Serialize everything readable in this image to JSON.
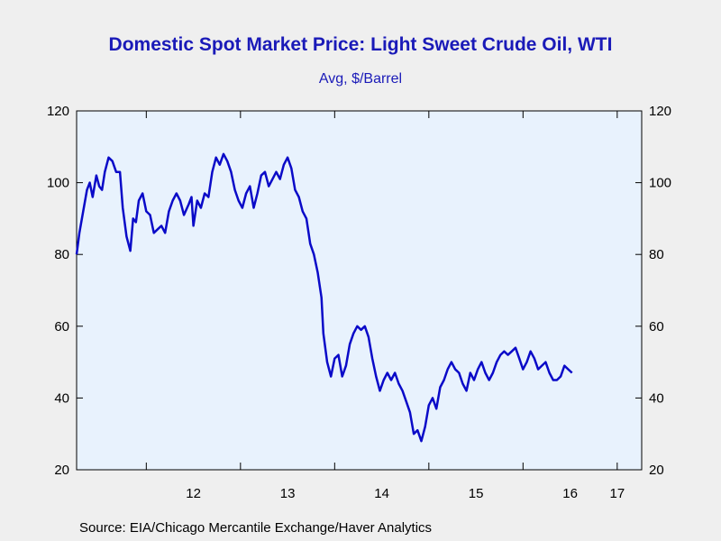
{
  "chart_data": {
    "type": "line",
    "title": "Domestic Spot Market Price: Light Sweet Crude Oil, WTI",
    "subtitle": "Avg, $/Barrel",
    "source": "Source:  EIA/Chicago Mercantile Exchange/Haver Analytics",
    "ylim": [
      20,
      120
    ],
    "yticks": [
      "20",
      "40",
      "60",
      "80",
      "100",
      "120"
    ],
    "xlim": [
      2011.26,
      2017.26
    ],
    "x_tick_labels": [
      {
        "label": "12",
        "x": 2012.5
      },
      {
        "label": "13",
        "x": 2013.5
      },
      {
        "label": "14",
        "x": 2014.5
      },
      {
        "label": "15",
        "x": 2015.5
      },
      {
        "label": "16",
        "x": 2016.5
      },
      {
        "label": "17",
        "x": 2017.0
      }
    ],
    "x_ticks": [
      2012,
      2013,
      2014,
      2015,
      2016,
      2017
    ],
    "grid": false,
    "line_color": "#0a0ac8",
    "plot_bg": "#e8f2fd",
    "series": [
      {
        "points": [
          [
            2011.26,
            80
          ],
          [
            2011.29,
            86
          ],
          [
            2011.33,
            92
          ],
          [
            2011.37,
            98
          ],
          [
            2011.4,
            100
          ],
          [
            2011.43,
            96
          ],
          [
            2011.47,
            102
          ],
          [
            2011.5,
            99
          ],
          [
            2011.53,
            98
          ],
          [
            2011.56,
            103
          ],
          [
            2011.6,
            107
          ],
          [
            2011.64,
            106
          ],
          [
            2011.68,
            103
          ],
          [
            2011.72,
            103
          ],
          [
            2011.75,
            93
          ],
          [
            2011.79,
            85
          ],
          [
            2011.83,
            81
          ],
          [
            2011.86,
            90
          ],
          [
            2011.89,
            89
          ],
          [
            2011.92,
            95
          ],
          [
            2011.96,
            97
          ],
          [
            2012.0,
            92
          ],
          [
            2012.04,
            91
          ],
          [
            2012.08,
            86
          ],
          [
            2012.12,
            87
          ],
          [
            2012.16,
            88
          ],
          [
            2012.2,
            86
          ],
          [
            2012.24,
            92
          ],
          [
            2012.28,
            95
          ],
          [
            2012.32,
            97
          ],
          [
            2012.36,
            95
          ],
          [
            2012.4,
            91
          ],
          [
            2012.45,
            94
          ],
          [
            2012.48,
            96
          ],
          [
            2012.5,
            88
          ],
          [
            2012.54,
            95
          ],
          [
            2012.58,
            93
          ],
          [
            2012.62,
            97
          ],
          [
            2012.66,
            96
          ],
          [
            2012.7,
            103
          ],
          [
            2012.74,
            107
          ],
          [
            2012.78,
            105
          ],
          [
            2012.82,
            108
          ],
          [
            2012.86,
            106
          ],
          [
            2012.9,
            103
          ],
          [
            2012.94,
            98
          ],
          [
            2012.98,
            95
          ],
          [
            2013.02,
            93
          ],
          [
            2013.06,
            97
          ],
          [
            2013.1,
            99
          ],
          [
            2013.14,
            93
          ],
          [
            2013.18,
            97
          ],
          [
            2013.22,
            102
          ],
          [
            2013.26,
            103
          ],
          [
            2013.3,
            99
          ],
          [
            2013.34,
            101
          ],
          [
            2013.38,
            103
          ],
          [
            2013.42,
            101
          ],
          [
            2013.46,
            105
          ],
          [
            2013.5,
            107
          ],
          [
            2013.54,
            104
          ],
          [
            2013.58,
            98
          ],
          [
            2013.62,
            96
          ],
          [
            2013.66,
            92
          ],
          [
            2013.7,
            90
          ],
          [
            2013.74,
            83
          ],
          [
            2013.78,
            80
          ],
          [
            2013.82,
            75
          ],
          [
            2013.86,
            68
          ],
          [
            2013.88,
            58
          ],
          [
            2013.92,
            50
          ],
          [
            2013.96,
            46
          ],
          [
            2014.0,
            51
          ],
          [
            2014.04,
            52
          ],
          [
            2014.08,
            46
          ],
          [
            2014.12,
            49
          ],
          [
            2014.16,
            55
          ],
          [
            2014.2,
            58
          ],
          [
            2014.24,
            60
          ],
          [
            2014.28,
            59
          ],
          [
            2014.32,
            60
          ],
          [
            2014.36,
            57
          ],
          [
            2014.4,
            51
          ],
          [
            2014.44,
            46
          ],
          [
            2014.48,
            42
          ],
          [
            2014.52,
            45
          ],
          [
            2014.56,
            47
          ],
          [
            2014.6,
            45
          ],
          [
            2014.64,
            47
          ],
          [
            2014.68,
            44
          ],
          [
            2014.72,
            42
          ],
          [
            2014.76,
            39
          ],
          [
            2014.8,
            36
          ],
          [
            2014.84,
            30
          ],
          [
            2014.88,
            31
          ],
          [
            2014.92,
            28
          ],
          [
            2014.96,
            32
          ],
          [
            2015.0,
            38
          ],
          [
            2015.04,
            40
          ],
          [
            2015.08,
            37
          ],
          [
            2015.12,
            43
          ],
          [
            2015.16,
            45
          ],
          [
            2015.2,
            48
          ],
          [
            2015.24,
            50
          ],
          [
            2015.28,
            48
          ],
          [
            2015.32,
            47
          ],
          [
            2015.36,
            44
          ],
          [
            2015.4,
            42
          ],
          [
            2015.44,
            47
          ],
          [
            2015.48,
            45
          ],
          [
            2015.52,
            48
          ],
          [
            2015.56,
            50
          ],
          [
            2015.6,
            47
          ],
          [
            2015.64,
            45
          ],
          [
            2015.68,
            47
          ],
          [
            2015.72,
            50
          ],
          [
            2015.76,
            52
          ],
          [
            2015.8,
            53
          ],
          [
            2015.84,
            52
          ],
          [
            2015.88,
            53
          ],
          [
            2015.92,
            54
          ],
          [
            2015.96,
            51
          ],
          [
            2016.0,
            48
          ],
          [
            2016.04,
            50
          ],
          [
            2016.08,
            53
          ],
          [
            2016.12,
            51
          ],
          [
            2016.16,
            48
          ],
          [
            2016.2,
            49
          ],
          [
            2016.24,
            50
          ],
          [
            2016.28,
            47
          ],
          [
            2016.32,
            45
          ],
          [
            2016.36,
            45
          ],
          [
            2016.4,
            46
          ],
          [
            2016.44,
            49
          ],
          [
            2016.48,
            48
          ],
          [
            2016.52,
            47
          ]
        ]
      }
    ]
  }
}
